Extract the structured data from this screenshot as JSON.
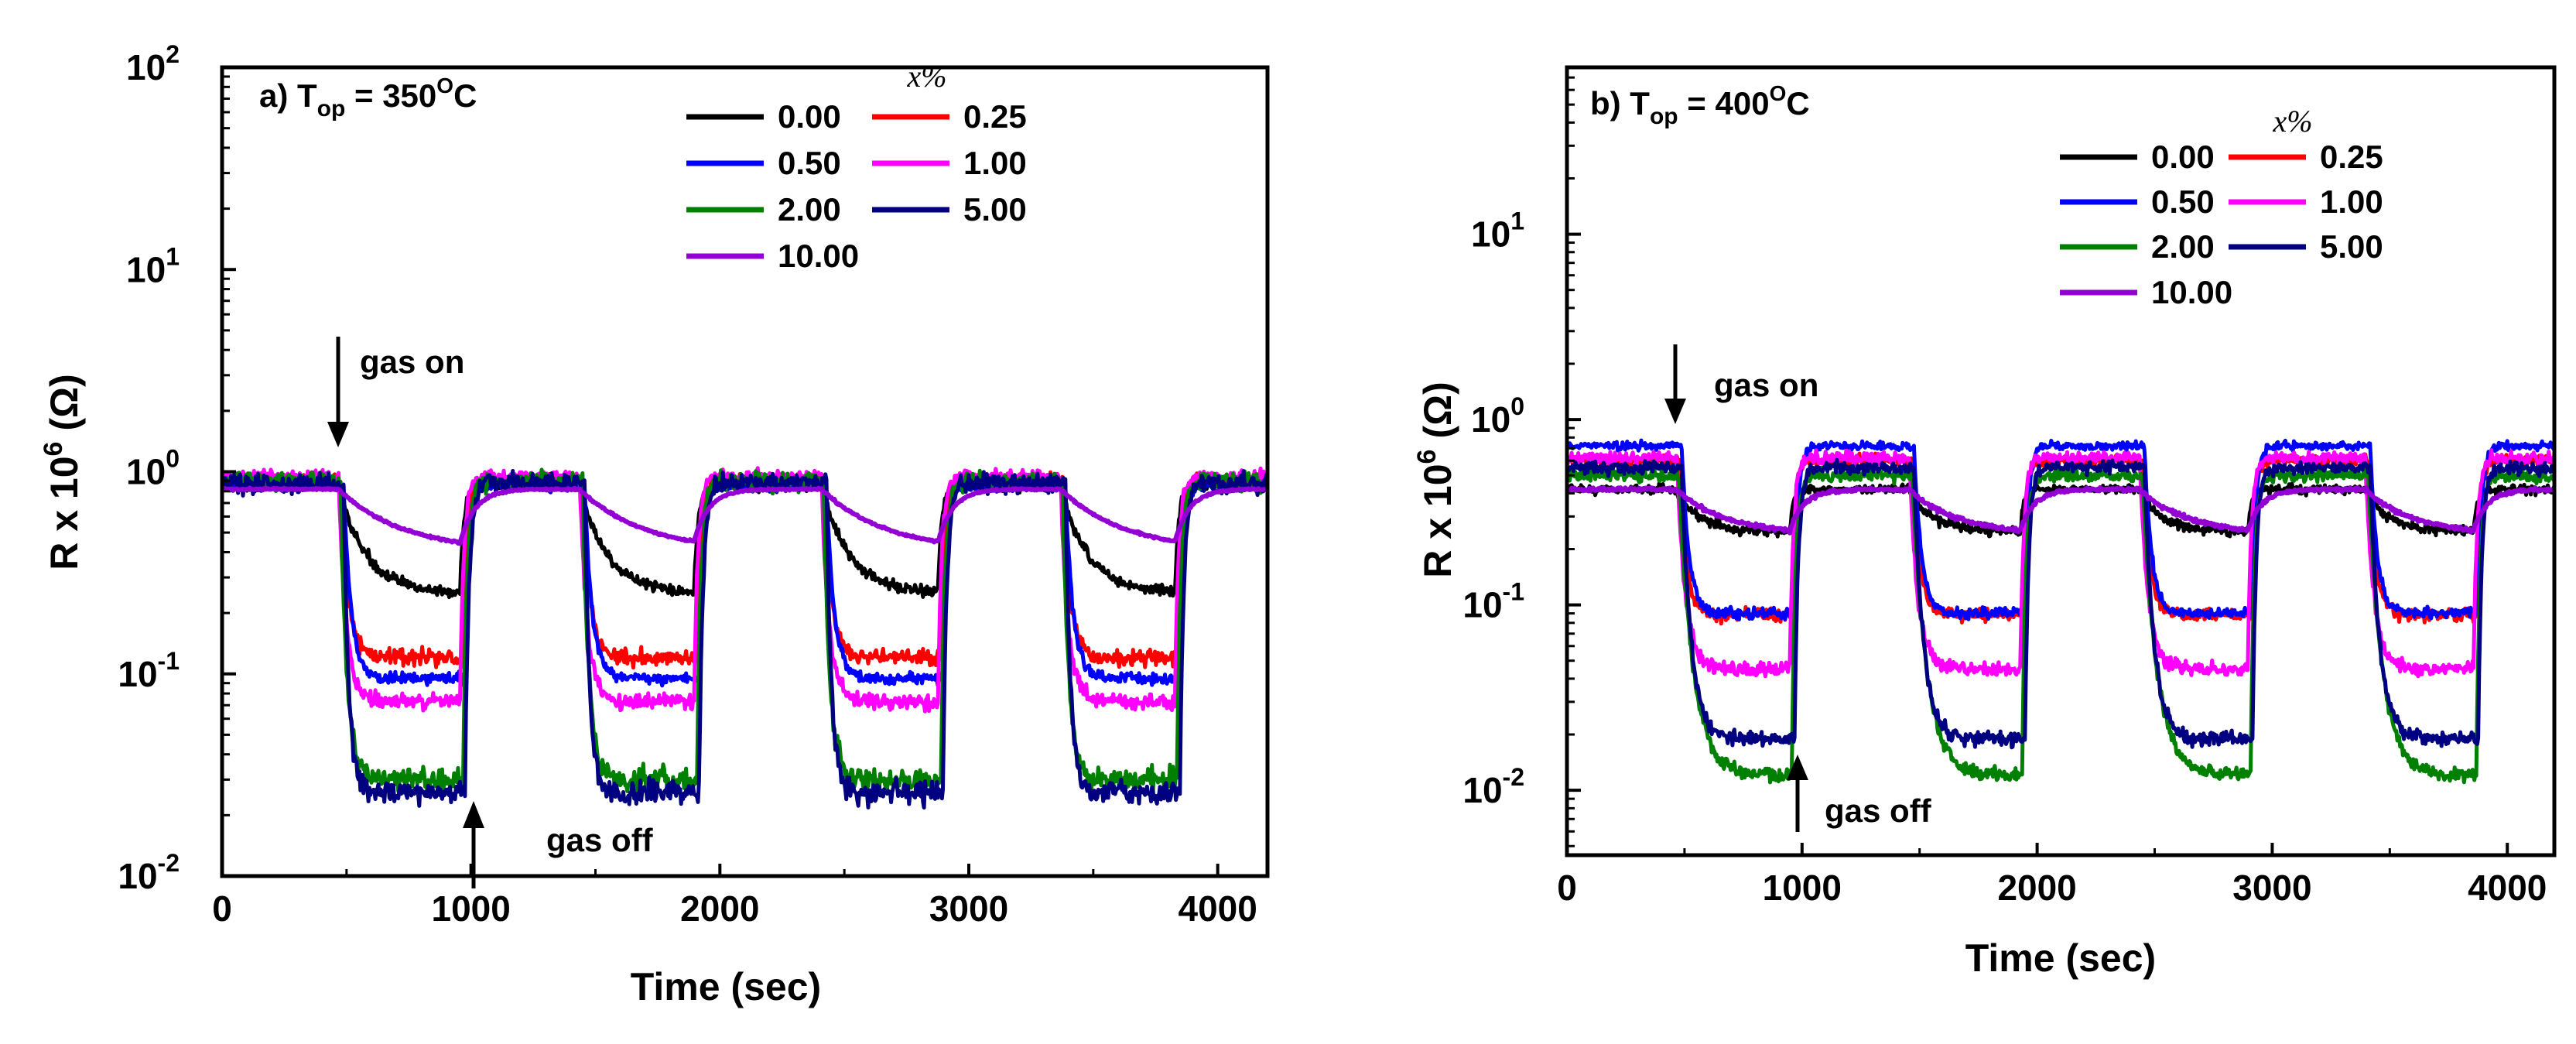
{
  "chart_data": [
    {
      "type": "line",
      "panel_label": "a) T",
      "panel_sub": "op",
      "panel_eq": " = 350",
      "panel_sup": "O",
      "panel_unit": "C",
      "xlabel": "Time (sec)",
      "ylabel_pre": "R x 10",
      "ylabel_sup": "6",
      "ylabel_post": " (Ω)",
      "x_ticks": [
        "0",
        "1000",
        "2000",
        "3000",
        "4000"
      ],
      "y_ticks": [
        {
          "base": "10",
          "exp": "-2"
        },
        {
          "base": "10",
          "exp": "-1"
        },
        {
          "base": "10",
          "exp": "0"
        },
        {
          "base": "10",
          "exp": "1"
        },
        {
          "base": "10",
          "exp": "2"
        }
      ],
      "xlim": [
        0,
        4200
      ],
      "ylim_log10": [
        -2,
        2
      ],
      "legend_title": "x%",
      "gas_on_label": "gas on",
      "gas_on_x": 470,
      "gas_off_label": "gas off",
      "gas_off_x": 990,
      "cycles": [
        [
          470,
          960
        ],
        [
          1440,
          1900
        ],
        [
          2410,
          2880
        ],
        [
          3370,
          3830
        ]
      ],
      "series": [
        {
          "name": "0.00",
          "color": "#000000",
          "base": 0.85,
          "low": 0.25,
          "tau": 110,
          "noise": 0.05
        },
        {
          "name": "0.25",
          "color": "#ff0000",
          "base": 0.9,
          "low": 0.12,
          "tau": 30,
          "noise": 0.07
        },
        {
          "name": "0.50",
          "color": "#0000ff",
          "base": 0.85,
          "low": 0.095,
          "tau": 30,
          "noise": 0.05
        },
        {
          "name": "1.00",
          "color": "#ff00ff",
          "base": 0.95,
          "low": 0.073,
          "tau": 30,
          "noise": 0.07
        },
        {
          "name": "2.00",
          "color": "#008000",
          "base": 0.9,
          "low": 0.03,
          "tau": 25,
          "noise": 0.1
        },
        {
          "name": "5.00",
          "color": "#000080",
          "base": 0.88,
          "low": 0.026,
          "tau": 20,
          "noise": 0.1
        },
        {
          "name": "10.00",
          "color": "#9400d3",
          "base": 0.82,
          "low": 0.4,
          "tau": 260,
          "noise": 0.01
        }
      ]
    },
    {
      "type": "line",
      "panel_label": "b) T",
      "panel_sub": "op",
      "panel_eq": " = 400",
      "panel_sup": "O",
      "panel_unit": "C",
      "xlabel": "Time (sec)",
      "ylabel_pre": "R x 10",
      "ylabel_sup": "6",
      "ylabel_post": " (Ω)",
      "x_ticks": [
        "0",
        "1000",
        "2000",
        "3000",
        "4000"
      ],
      "y_ticks": [
        {
          "base": "10",
          "exp": "-2"
        },
        {
          "base": "10",
          "exp": "-1"
        },
        {
          "base": "10",
          "exp": "0"
        },
        {
          "base": "10",
          "exp": "1"
        }
      ],
      "xlim": [
        0,
        4200
      ],
      "ylim_log10": [
        -2.35,
        1.9
      ],
      "legend_title": "x%",
      "gas_on_label": "gas on",
      "gas_on_x": 460,
      "gas_off_label": "gas off",
      "gas_off_x": 960,
      "cycles": [
        [
          470,
          950
        ],
        [
          1460,
          1930
        ],
        [
          2440,
          2900
        ],
        [
          3400,
          3860
        ]
      ],
      "series": [
        {
          "name": "0.00",
          "color": "#000000",
          "base": 0.42,
          "low": 0.25,
          "tau": 90,
          "noise": 0.05
        },
        {
          "name": "0.25",
          "color": "#ff0000",
          "base": 0.6,
          "low": 0.088,
          "tau": 30,
          "noise": 0.06
        },
        {
          "name": "0.50",
          "color": "#0000ff",
          "base": 0.72,
          "low": 0.09,
          "tau": 30,
          "noise": 0.05
        },
        {
          "name": "1.00",
          "color": "#ff00ff",
          "base": 0.62,
          "low": 0.045,
          "tau": 35,
          "noise": 0.07
        },
        {
          "name": "2.00",
          "color": "#008000",
          "base": 0.5,
          "low": 0.012,
          "tau": 60,
          "noise": 0.07
        },
        {
          "name": "5.00",
          "color": "#000080",
          "base": 0.55,
          "low": 0.019,
          "tau": 40,
          "noise": 0.07
        },
        {
          "name": "10.00",
          "color": "#9400d3",
          "base": 0.42,
          "low": 0.24,
          "tau": 200,
          "noise": 0.02
        }
      ]
    }
  ]
}
